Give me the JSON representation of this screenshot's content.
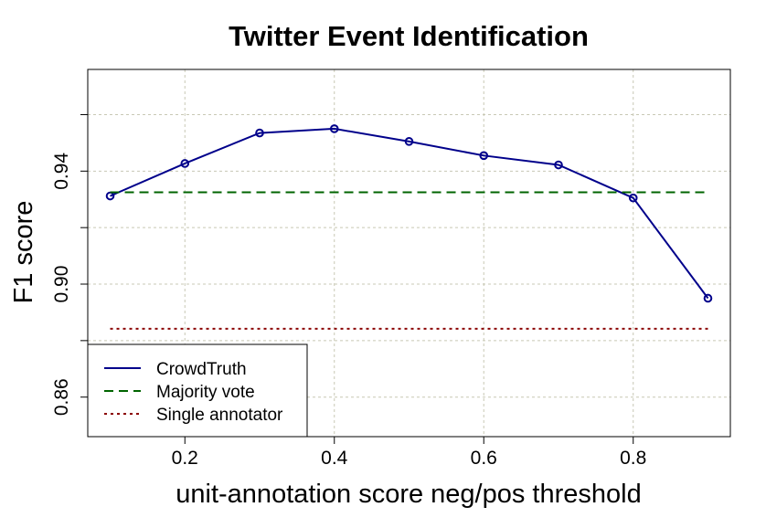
{
  "chart_data": {
    "type": "line",
    "title": "Twitter Event Identification",
    "xlabel": "unit-annotation score neg/pos threshold",
    "ylabel": "F1 score",
    "xlim": [
      0.07,
      0.93
    ],
    "ylim": [
      0.846,
      0.976
    ],
    "x_ticks": [
      0.2,
      0.4,
      0.6,
      0.8
    ],
    "x_tick_labels": [
      "0.2",
      "0.4",
      "0.6",
      "0.8"
    ],
    "y_ticks": [
      0.86,
      0.88,
      0.9,
      0.92,
      0.94,
      0.96
    ],
    "y_tick_labels": [
      "0.86",
      "",
      "0.90",
      "",
      "0.94",
      ""
    ],
    "grid": true,
    "legend_position": "bottom-left",
    "series": [
      {
        "name": "CrowdTruth",
        "style": "solid",
        "markers": true,
        "color": "#00008b",
        "x": [
          0.1,
          0.2,
          0.3,
          0.4,
          0.5,
          0.6,
          0.7,
          0.8,
          0.9
        ],
        "values": [
          0.9312,
          0.9427,
          0.9535,
          0.955,
          0.9505,
          0.9455,
          0.9422,
          0.9305,
          0.895
        ]
      },
      {
        "name": "Majority vote",
        "style": "dashed",
        "markers": false,
        "color": "#006400",
        "x": [
          0.1,
          0.9
        ],
        "values": [
          0.9325,
          0.9325
        ]
      },
      {
        "name": "Single annotator",
        "style": "dotted",
        "markers": false,
        "color": "#8b0000",
        "x": [
          0.1,
          0.9
        ],
        "values": [
          0.8842,
          0.8842
        ]
      }
    ]
  }
}
